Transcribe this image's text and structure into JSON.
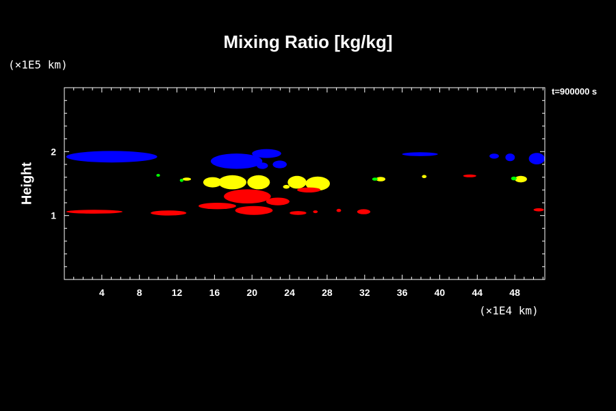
{
  "chart_data": {
    "type": "scatter",
    "title": "Mixing Ratio [kg/kg]",
    "ylabel": "Height",
    "y_unit": "(×1E5 km)",
    "x_unit": "(×1E4 km)",
    "time_label": "t=900000 s",
    "xlim": [
      0,
      51.2
    ],
    "ylim": [
      0,
      3
    ],
    "x_ticks": [
      4,
      8,
      12,
      16,
      20,
      24,
      28,
      32,
      36,
      40,
      44,
      48
    ],
    "y_ticks": [
      1,
      2
    ],
    "series": [
      {
        "color": "#0000ff",
        "blobs": [
          {
            "x": 0.2,
            "y": 1.92,
            "w": 9.7,
            "h": 0.18
          },
          {
            "x": 15.6,
            "y": 1.85,
            "w": 5.5,
            "h": 0.24
          },
          {
            "x": 20.0,
            "y": 1.97,
            "w": 3.1,
            "h": 0.14
          },
          {
            "x": 20.5,
            "y": 1.78,
            "w": 1.2,
            "h": 0.1
          },
          {
            "x": 22.2,
            "y": 1.8,
            "w": 1.5,
            "h": 0.12
          },
          {
            "x": 36.0,
            "y": 1.96,
            "w": 3.8,
            "h": 0.06
          },
          {
            "x": 45.3,
            "y": 1.93,
            "w": 1.0,
            "h": 0.08
          },
          {
            "x": 47.0,
            "y": 1.91,
            "w": 1.0,
            "h": 0.12
          },
          {
            "x": 49.5,
            "y": 1.89,
            "w": 1.7,
            "h": 0.18
          }
        ]
      },
      {
        "color": "#ffff00",
        "blobs": [
          {
            "x": 14.8,
            "y": 1.52,
            "w": 2.0,
            "h": 0.16
          },
          {
            "x": 16.4,
            "y": 1.52,
            "w": 3.0,
            "h": 0.22
          },
          {
            "x": 19.5,
            "y": 1.52,
            "w": 2.4,
            "h": 0.22
          },
          {
            "x": 23.8,
            "y": 1.52,
            "w": 2.0,
            "h": 0.2
          },
          {
            "x": 25.7,
            "y": 1.5,
            "w": 2.6,
            "h": 0.22
          },
          {
            "x": 23.3,
            "y": 1.45,
            "w": 0.7,
            "h": 0.06
          },
          {
            "x": 12.6,
            "y": 1.57,
            "w": 0.9,
            "h": 0.05
          },
          {
            "x": 33.2,
            "y": 1.57,
            "w": 1.0,
            "h": 0.07
          },
          {
            "x": 38.1,
            "y": 1.61,
            "w": 0.5,
            "h": 0.05
          },
          {
            "x": 48.0,
            "y": 1.57,
            "w": 1.3,
            "h": 0.1
          }
        ]
      },
      {
        "color": "#00ff00",
        "blobs": [
          {
            "x": 9.8,
            "y": 1.63,
            "w": 0.4,
            "h": 0.04
          },
          {
            "x": 12.3,
            "y": 1.55,
            "w": 0.4,
            "h": 0.05
          },
          {
            "x": 32.8,
            "y": 1.57,
            "w": 0.6,
            "h": 0.05
          },
          {
            "x": 47.6,
            "y": 1.58,
            "w": 0.6,
            "h": 0.06
          }
        ]
      },
      {
        "color": "#ff0000",
        "blobs": [
          {
            "x": 0.2,
            "y": 1.06,
            "w": 6.0,
            "h": 0.06
          },
          {
            "x": 9.2,
            "y": 1.04,
            "w": 3.8,
            "h": 0.08
          },
          {
            "x": 14.3,
            "y": 1.15,
            "w": 4.0,
            "h": 0.1
          },
          {
            "x": 17.0,
            "y": 1.3,
            "w": 5.0,
            "h": 0.22
          },
          {
            "x": 18.2,
            "y": 1.08,
            "w": 4.0,
            "h": 0.14
          },
          {
            "x": 21.5,
            "y": 1.22,
            "w": 2.5,
            "h": 0.12
          },
          {
            "x": 24.0,
            "y": 1.04,
            "w": 1.8,
            "h": 0.06
          },
          {
            "x": 24.8,
            "y": 1.4,
            "w": 2.5,
            "h": 0.08
          },
          {
            "x": 26.5,
            "y": 1.06,
            "w": 0.5,
            "h": 0.04
          },
          {
            "x": 29.0,
            "y": 1.08,
            "w": 0.5,
            "h": 0.05
          },
          {
            "x": 31.2,
            "y": 1.06,
            "w": 1.4,
            "h": 0.08
          },
          {
            "x": 42.5,
            "y": 1.62,
            "w": 1.4,
            "h": 0.04
          },
          {
            "x": 50.0,
            "y": 1.09,
            "w": 1.1,
            "h": 0.05
          }
        ]
      }
    ]
  }
}
